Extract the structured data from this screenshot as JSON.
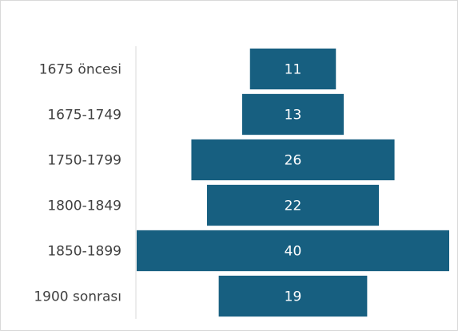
{
  "chart_data": {
    "type": "funnel",
    "categories": [
      "1675 öncesi",
      "1675-1749",
      "1750-1799",
      "1800-1849",
      "1850-1899",
      "1900 sonrası"
    ],
    "values": [
      11,
      13,
      26,
      22,
      40,
      19
    ],
    "color": "#175f80"
  }
}
